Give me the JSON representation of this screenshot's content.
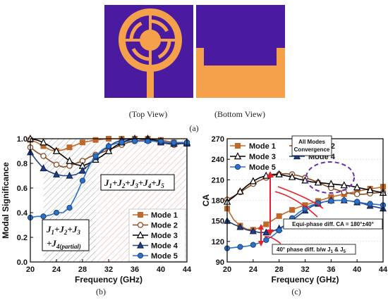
{
  "captions": {
    "top_view": "(Top View)",
    "bottom_view": "(Bottom View)",
    "a": "(a)",
    "b": "(b)",
    "c": "(c)"
  },
  "colors": {
    "substrate": "#4a1aa1",
    "copper": "#f5a04a",
    "mode1": "#c0682a",
    "mode2": "#8a4a24",
    "mode3": "#000000",
    "mode4": "#1f3f87",
    "mode5": "#2a72c8",
    "arrow": "#e8202a",
    "ellipse": "#6a2fb0"
  },
  "annotations_b": {
    "j_all_1": "J",
    "j_all_text": "J1+J2+J3+J4+J5",
    "j_partial_line1": "J1+J2+J3",
    "j_partial_line2": "+J4(partial)"
  },
  "annotations_c": {
    "convergence_line1": "All Modes",
    "convergence_line2": "Convergence",
    "equi_phase": "Equi-phase diff. CA = 180°±40°",
    "phase_40": "40° phase diff. b/w J1 & J5"
  },
  "chart_data": [
    {
      "type": "line",
      "panel": "b",
      "xlabel": "Frequency (GHz)",
      "ylabel": "Modal Significance",
      "xlim": [
        20,
        44
      ],
      "ylim": [
        0.0,
        1.0
      ],
      "xticks": [
        20,
        24,
        28,
        32,
        36,
        40,
        44
      ],
      "yticks": [
        0.0,
        0.2,
        0.4,
        0.6,
        0.8,
        1.0
      ],
      "legend_position": "bottom-right",
      "x": [
        20,
        21,
        22,
        23,
        24,
        25,
        26,
        27,
        28,
        29,
        30,
        31,
        32,
        33,
        34,
        35,
        36,
        37,
        38,
        39,
        40,
        41,
        42,
        43,
        44
      ],
      "series": [
        {
          "name": "Mode 1",
          "marker": "square",
          "values": [
            0.99,
            0.97,
            0.94,
            0.91,
            0.9,
            0.91,
            0.93,
            0.95,
            0.97,
            0.98,
            0.99,
            0.995,
            1.0,
            1.0,
            1.0,
            1.0,
            1.0,
            1.0,
            1.0,
            0.995,
            0.99,
            0.98,
            0.97,
            0.965,
            0.96
          ]
        },
        {
          "name": "Mode 2",
          "marker": "circle",
          "values": [
            0.93,
            0.89,
            0.86,
            0.82,
            0.79,
            0.77,
            0.78,
            0.8,
            0.82,
            0.85,
            0.87,
            0.89,
            0.91,
            0.93,
            0.95,
            0.97,
            0.98,
            0.99,
            0.99,
            0.98,
            0.97,
            0.96,
            0.95,
            0.96,
            0.97
          ]
        },
        {
          "name": "Mode 3",
          "marker": "triangle",
          "values": [
            1.0,
            0.99,
            0.97,
            0.94,
            0.9,
            0.86,
            0.82,
            0.79,
            0.78,
            0.8,
            0.83,
            0.86,
            0.9,
            0.94,
            0.97,
            0.99,
            1.0,
            1.0,
            1.0,
            0.99,
            0.98,
            0.97,
            0.96,
            0.96,
            0.97
          ]
        },
        {
          "name": "Mode 4",
          "marker": "triangle-filled",
          "values": [
            0.89,
            0.82,
            0.76,
            0.73,
            0.71,
            0.7,
            0.7,
            0.71,
            0.74,
            0.79,
            0.85,
            0.9,
            0.94,
            0.97,
            0.99,
            1.0,
            1.0,
            1.0,
            0.99,
            0.98,
            0.97,
            0.96,
            0.96,
            0.96,
            0.96
          ]
        },
        {
          "name": "Mode 5",
          "marker": "circle-filled",
          "values": [
            0.36,
            0.37,
            0.37,
            0.38,
            0.4,
            0.4,
            0.44,
            0.54,
            0.66,
            0.78,
            0.86,
            0.91,
            0.94,
            0.96,
            0.97,
            0.98,
            0.98,
            0.98,
            0.98,
            0.98,
            0.98,
            0.97,
            0.97,
            0.97,
            0.97
          ]
        }
      ]
    },
    {
      "type": "line",
      "panel": "c",
      "xlabel": "Frequency (GHz)",
      "ylabel": "CA",
      "xlim": [
        20,
        44
      ],
      "ylim": [
        90,
        270
      ],
      "xticks": [
        20,
        24,
        28,
        32,
        36,
        40,
        44
      ],
      "yticks": [
        90,
        120,
        150,
        180,
        210,
        240,
        270
      ],
      "legend_position": "top",
      "x": [
        20,
        21,
        22,
        23,
        24,
        25,
        26,
        27,
        28,
        29,
        30,
        31,
        32,
        33,
        34,
        35,
        36,
        37,
        38,
        39,
        40,
        41,
        42,
        43,
        44
      ],
      "series": [
        {
          "name": "Mode 1",
          "marker": "square",
          "values": [
            168,
            152,
            143,
            138,
            137,
            140,
            145,
            151,
            157,
            162,
            166,
            170,
            173,
            176,
            179,
            182,
            185,
            187,
            189,
            191,
            193,
            195,
            197,
            198,
            200
          ]
        },
        {
          "name": "Mode 2",
          "marker": "circle",
          "values": [
            181,
            186,
            192,
            198,
            204,
            209,
            213,
            216,
            218,
            219,
            218,
            216,
            213,
            210,
            206,
            202,
            198,
            195,
            192,
            190,
            189,
            189,
            190,
            191,
            192
          ]
        },
        {
          "name": "Mode 3",
          "marker": "triangle",
          "values": [
            178,
            185,
            193,
            201,
            208,
            213,
            216,
            218,
            218,
            216,
            214,
            211,
            209,
            207,
            206,
            205,
            204,
            203,
            202,
            201,
            199,
            197,
            195,
            193,
            191
          ]
        },
        {
          "name": "Mode 4",
          "marker": "triangle-filled",
          "values": [
            150,
            145,
            141,
            137,
            135,
            133,
            133,
            135,
            139,
            144,
            151,
            158,
            165,
            171,
            175,
            178,
            180,
            180,
            180,
            179,
            177,
            175,
            172,
            170,
            168
          ]
        },
        {
          "name": "Mode 5",
          "marker": "circle-filled",
          "values": [
            110,
            111,
            112,
            113,
            115,
            118,
            122,
            128,
            136,
            145,
            154,
            162,
            168,
            173,
            176,
            178,
            179,
            180,
            180,
            179,
            178,
            176,
            175,
            174,
            173
          ]
        }
      ]
    }
  ]
}
